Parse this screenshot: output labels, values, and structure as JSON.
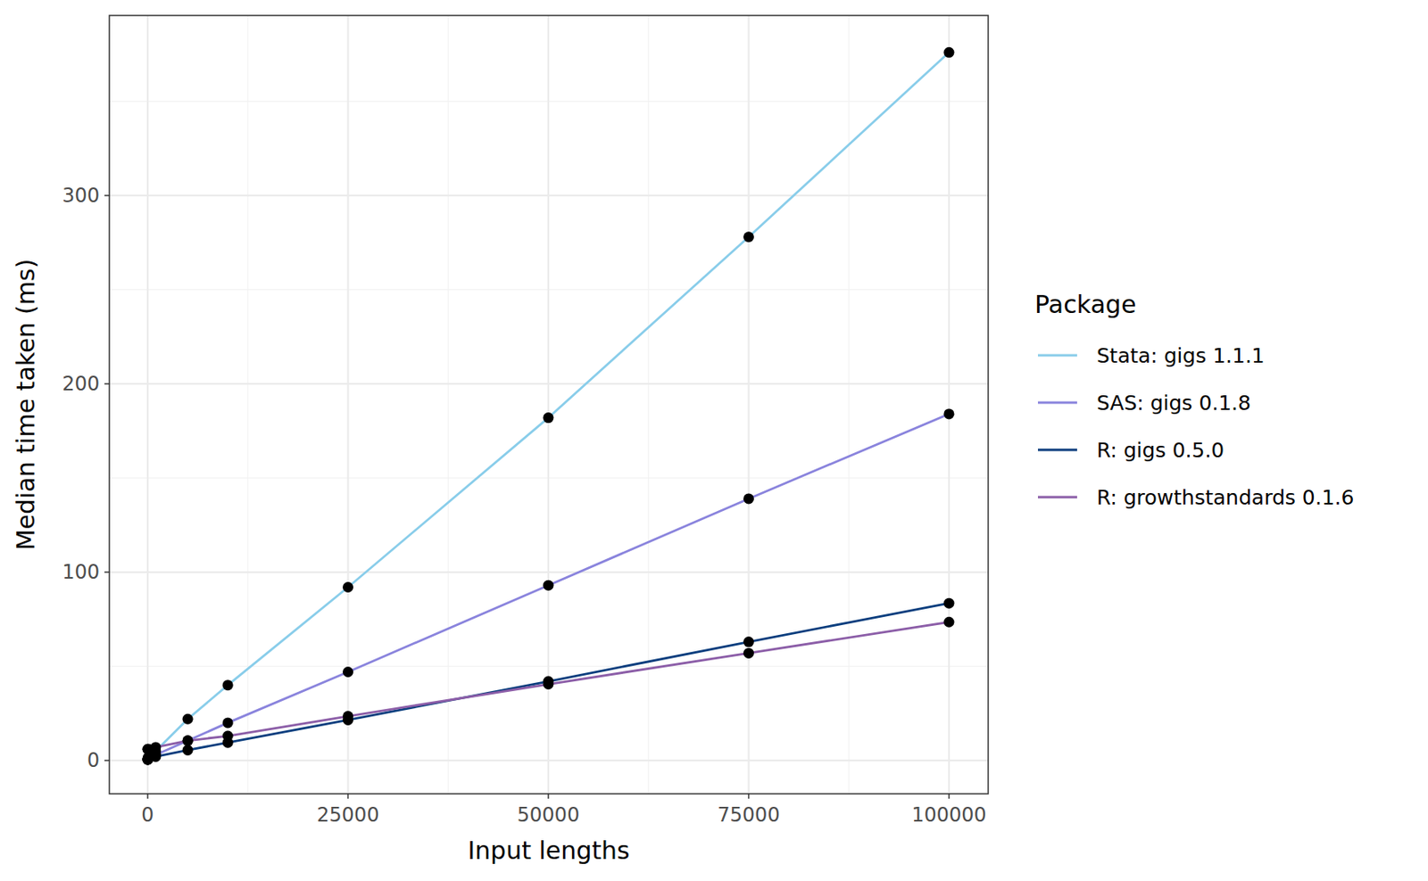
{
  "chart_data": {
    "type": "line",
    "x_label": "Input lengths",
    "y_label": "Median time taken (ms)",
    "legend_title": "Package",
    "legend": "right",
    "grid": true,
    "marker": "circle",
    "x": [
      1,
      10,
      100,
      1000,
      5000,
      10000,
      25000,
      50000,
      75000,
      100000
    ],
    "xlim": [
      -4786,
      104888
    ],
    "ylim": [
      -17.7,
      395.6
    ],
    "xticks": [
      0,
      25000,
      50000,
      75000,
      100000
    ],
    "yticks": [
      0,
      100,
      200,
      300
    ],
    "series": [
      {
        "name": "Stata: gigs 1.1.1",
        "color": "#89cdea",
        "values": [
          1,
          1,
          2,
          5,
          22,
          40,
          92,
          182,
          278,
          376
        ]
      },
      {
        "name": "SAS: gigs 0.1.8",
        "color": "#8a84dd",
        "values": [
          0.5,
          0.5,
          1,
          3,
          10.5,
          20,
          47,
          93,
          139,
          184
        ]
      },
      {
        "name": "R: gigs 0.5.0",
        "color": "#0b3e7e",
        "values": [
          0.5,
          0.5,
          1,
          2,
          5.5,
          9.5,
          21.5,
          42,
          63,
          83.5
        ]
      },
      {
        "name": "R: growthstandards 0.1.6",
        "color": "#8c5ea8",
        "values": [
          6,
          6,
          6,
          7,
          10.5,
          13,
          23.5,
          40.5,
          57,
          73.5
        ]
      }
    ]
  }
}
